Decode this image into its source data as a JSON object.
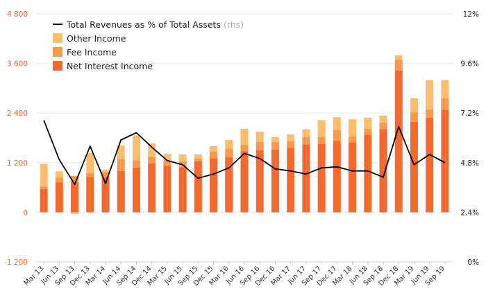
{
  "chart_data": {
    "type": "bar",
    "stacked": true,
    "categories": [
      "Mar 13",
      "Jun 13",
      "Sep 13",
      "Dec 13",
      "Mar 14",
      "Jun 14",
      "Sep 14",
      "Dec 14",
      "Mar 15",
      "Jun 15",
      "Sep 15",
      "Dec 15",
      "Mar 16",
      "Jun 16",
      "Sep 16",
      "Dec 16",
      "Mar 17",
      "Jun 17",
      "Sep 17",
      "Dec 17",
      "Mar 18",
      "Jun 18",
      "Sep 18",
      "Dec 18",
      "Mar 19",
      "Jun 19",
      "Sep 19"
    ],
    "x_tick_labels": [
      "Mar 13",
      "Jun 13",
      "Sep 13",
      "Dec 13",
      "Mar 14",
      "Jun 14",
      "Sep 14",
      "Dec 14",
      "Mar 15",
      "Jun 15",
      "Sep 15",
      "Dec 15",
      "Mar 16",
      "Jun 16",
      "Sep 16",
      "Dec 16",
      "Mar 17",
      "Jun 17",
      "Sep 17",
      "Dec 17",
      "Mar 18",
      "Jun 18",
      "Sep 18",
      "Dec 18",
      "Mar 19",
      "Jun 19",
      "Sep 19"
    ],
    "series": [
      {
        "name": "Net Interest Income",
        "axis": "left",
        "color": "#f26a30",
        "values": [
          560,
          720,
          730,
          860,
          850,
          1000,
          1080,
          1180,
          1120,
          1090,
          1240,
          1310,
          1330,
          1480,
          1500,
          1520,
          1560,
          1640,
          1650,
          1720,
          1690,
          1880,
          2010,
          3430,
          2190,
          2290,
          2480
        ]
      },
      {
        "name": "Fee Income",
        "axis": "left",
        "color": "#f79a4d",
        "values": [
          70,
          120,
          150,
          90,
          120,
          280,
          180,
          160,
          140,
          140,
          60,
          160,
          210,
          150,
          200,
          180,
          160,
          180,
          180,
          270,
          140,
          140,
          160,
          260,
          230,
          200,
          280
        ]
      },
      {
        "name": "Other Income",
        "axis": "left",
        "color": "#fbbd6f",
        "values": [
          540,
          150,
          -40,
          480,
          60,
          340,
          600,
          330,
          150,
          170,
          100,
          130,
          210,
          390,
          250,
          120,
          160,
          190,
          400,
          310,
          420,
          270,
          170,
          110,
          340,
          710,
          440
        ]
      },
      {
        "name": "Total Revenues as % of Total Assets",
        "axis": "right",
        "color": "#000000",
        "type": "line",
        "values": [
          6.85,
          4.95,
          3.75,
          5.6,
          3.8,
          5.9,
          6.25,
          5.55,
          4.9,
          4.7,
          4.05,
          4.25,
          4.55,
          5.25,
          5.0,
          4.5,
          4.4,
          4.25,
          4.55,
          4.6,
          4.4,
          4.4,
          4.1,
          6.55,
          4.7,
          5.2,
          4.8
        ]
      }
    ],
    "legend": {
      "position": "top-left",
      "entries": [
        {
          "label": "Total Revenues as % of Total Assets",
          "note": "(rhs)",
          "kind": "line",
          "color": "#000000"
        },
        {
          "label": "Other Income",
          "kind": "box",
          "color": "#fbbd6f"
        },
        {
          "label": "Fee Income",
          "kind": "box",
          "color": "#f79a4d"
        },
        {
          "label": "Net Interest Income",
          "kind": "box",
          "color": "#f26a30"
        }
      ]
    },
    "y_left": {
      "ylim": [
        -1200,
        4800
      ],
      "ticks": [
        -1200,
        0,
        1200,
        2400,
        3600,
        4800
      ],
      "tick_labels": [
        "-1 200",
        "0",
        "1 200",
        "2 400",
        "3 600",
        "4 800"
      ],
      "color": "#f0642a"
    },
    "y_right": {
      "ylim": [
        0,
        12
      ],
      "ticks": [
        0,
        2.4,
        4.8,
        7.2,
        9.6,
        12
      ],
      "tick_labels": [
        "0%",
        "2.4%",
        "4.8%",
        "7.2%",
        "9.6%",
        "12%"
      ]
    },
    "grid": true,
    "title": "",
    "xlabel": "",
    "ylabel": ""
  }
}
